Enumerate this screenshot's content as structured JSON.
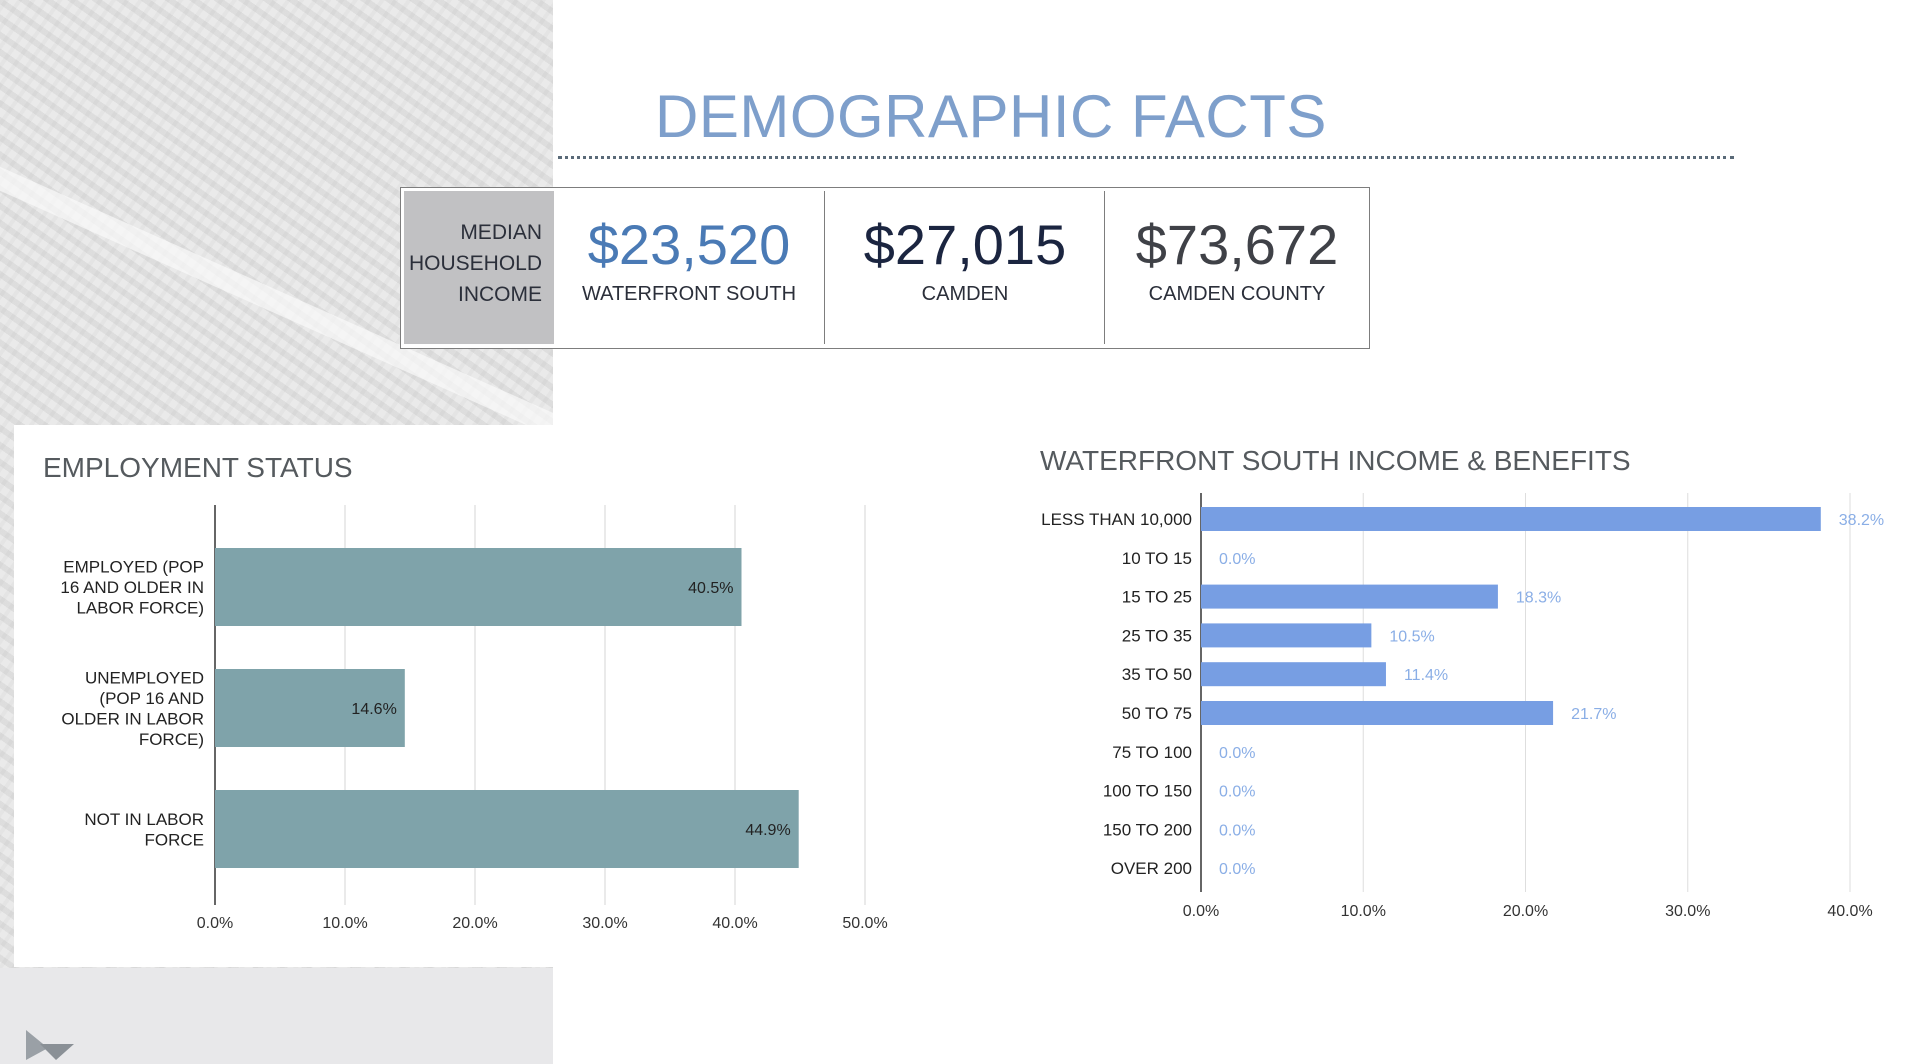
{
  "title": "DEMOGRAPHIC FACTS",
  "income": {
    "label_lines": [
      "MEDIAN",
      "HOUSEHOLD",
      "INCOME"
    ],
    "values": [
      {
        "value": "$23,520",
        "name": "WATERFRONT SOUTH",
        "color": "#4a7ab5"
      },
      {
        "value": "$27,015",
        "name": "CAMDEN",
        "color": "#1b2540"
      },
      {
        "value": "$73,672",
        "name": "CAMDEN COUNTY",
        "color": "#3f4147"
      }
    ]
  },
  "chart_data": [
    {
      "type": "bar",
      "orientation": "horizontal",
      "title": "EMPLOYMENT STATUS",
      "categories": [
        [
          "EMPLOYED (POP",
          "16 AND OLDER IN",
          "LABOR FORCE)"
        ],
        [
          "UNEMPLOYED",
          "(POP 16 AND",
          "OLDER IN LABOR",
          "FORCE)"
        ],
        [
          "NOT IN LABOR",
          "FORCE"
        ]
      ],
      "values": [
        40.5,
        14.6,
        44.9
      ],
      "value_labels": [
        "40.5%",
        "14.6%",
        "44.9%"
      ],
      "xlim": [
        0,
        50
      ],
      "ticks": [
        0,
        10,
        20,
        30,
        40,
        50
      ],
      "tick_labels": [
        "0.0%",
        "10.0%",
        "20.0%",
        "30.0%",
        "40.0%",
        "50.0%"
      ],
      "grid": true,
      "bar_color": "#7fa3aa",
      "label_position": "inside-end"
    },
    {
      "type": "bar",
      "orientation": "horizontal",
      "title": "WATERFRONT SOUTH INCOME & BENEFITS",
      "categories": [
        "LESS THAN 10,000",
        "10 TO 15",
        "15 TO 25",
        "25 TO 35",
        "35 TO 50",
        "50 TO 75",
        "75 TO 100",
        "100 TO 150",
        "150 TO 200",
        "OVER 200"
      ],
      "values": [
        38.2,
        0.0,
        18.3,
        10.5,
        11.4,
        21.7,
        0.0,
        0.0,
        0.0,
        0.0
      ],
      "value_labels": [
        "38.2%",
        "0.0%",
        "18.3%",
        "10.5%",
        "11.4%",
        "21.7%",
        "0.0%",
        "0.0%",
        "0.0%",
        "0.0%"
      ],
      "xlim": [
        0,
        40
      ],
      "ticks": [
        0,
        10,
        20,
        30,
        40
      ],
      "tick_labels": [
        "0.0%",
        "10.0%",
        "20.0%",
        "30.0%",
        "40.0%"
      ],
      "grid": true,
      "bar_color": "#779ee3",
      "label_color": "#8aaee6",
      "label_position": "outside-end"
    }
  ]
}
